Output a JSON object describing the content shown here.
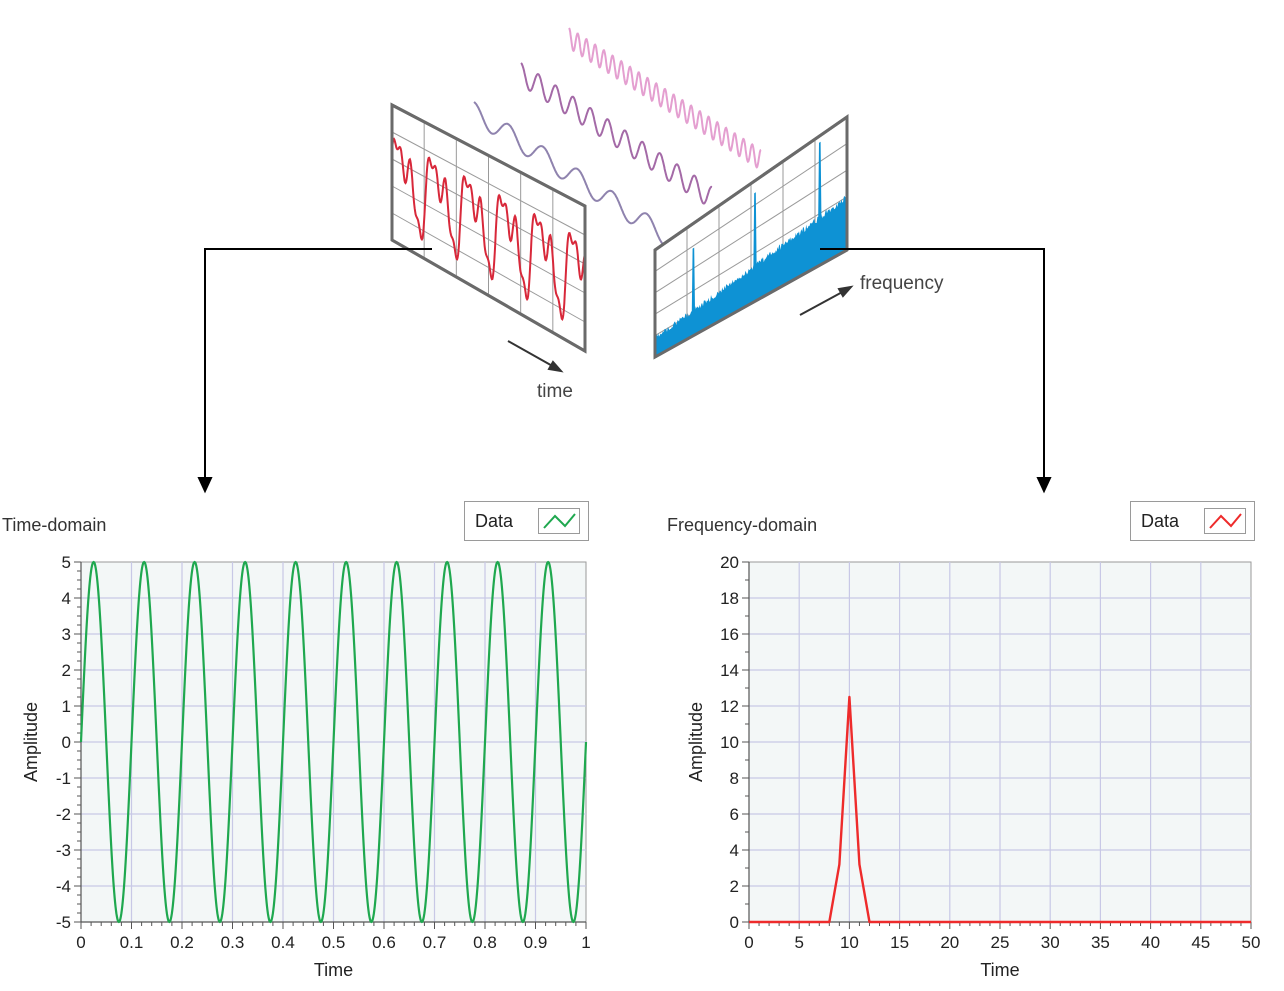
{
  "illustration": {
    "time_label": "time",
    "frequency_label": "frequency"
  },
  "colors": {
    "time_trace": "#d8283a",
    "spectrum_fill": "#0e92d4",
    "wave1": "#8f83ae",
    "wave2": "#a46aa7",
    "wave3": "#e49fd0",
    "time_series": "#1fa84f",
    "freq_series": "#ee2b2b",
    "plot_bg": "#f3f7f7",
    "grid": "#c8c8e6"
  },
  "chart_data": [
    {
      "type": "line",
      "title": "Time-domain",
      "xlabel": "Time",
      "ylabel": "Amplitude",
      "xlim": [
        0,
        1
      ],
      "ylim": [
        -5,
        5
      ],
      "xticks": [
        "0",
        "0.1",
        "0.2",
        "0.3",
        "0.4",
        "0.5",
        "0.6",
        "0.7",
        "0.8",
        "0.9",
        "1"
      ],
      "yticks": [
        "5",
        "4",
        "3",
        "2",
        "1",
        "0",
        "-1",
        "-2",
        "-3",
        "-4",
        "-5"
      ],
      "legend": "top-right",
      "grid": true,
      "series": [
        {
          "name": "Data",
          "function": "5*sin(2*pi*10*t)",
          "t_range": [
            0,
            1
          ]
        }
      ]
    },
    {
      "type": "line",
      "title": "Frequency-domain",
      "xlabel": "Time",
      "ylabel": "Amplitude",
      "xlim": [
        0,
        50
      ],
      "ylim": [
        0,
        20
      ],
      "xticks": [
        "0",
        "5",
        "10",
        "15",
        "20",
        "25",
        "30",
        "35",
        "40",
        "45",
        "50"
      ],
      "yticks": [
        "20",
        "18",
        "16",
        "14",
        "12",
        "10",
        "8",
        "6",
        "4",
        "2",
        "0"
      ],
      "legend": "top-right",
      "grid": true,
      "series": [
        {
          "name": "Data",
          "x": [
            0,
            8,
            9,
            10,
            11,
            12,
            13,
            50
          ],
          "y": [
            0,
            0,
            3.2,
            12.5,
            3.2,
            0,
            0,
            0
          ]
        }
      ]
    }
  ]
}
